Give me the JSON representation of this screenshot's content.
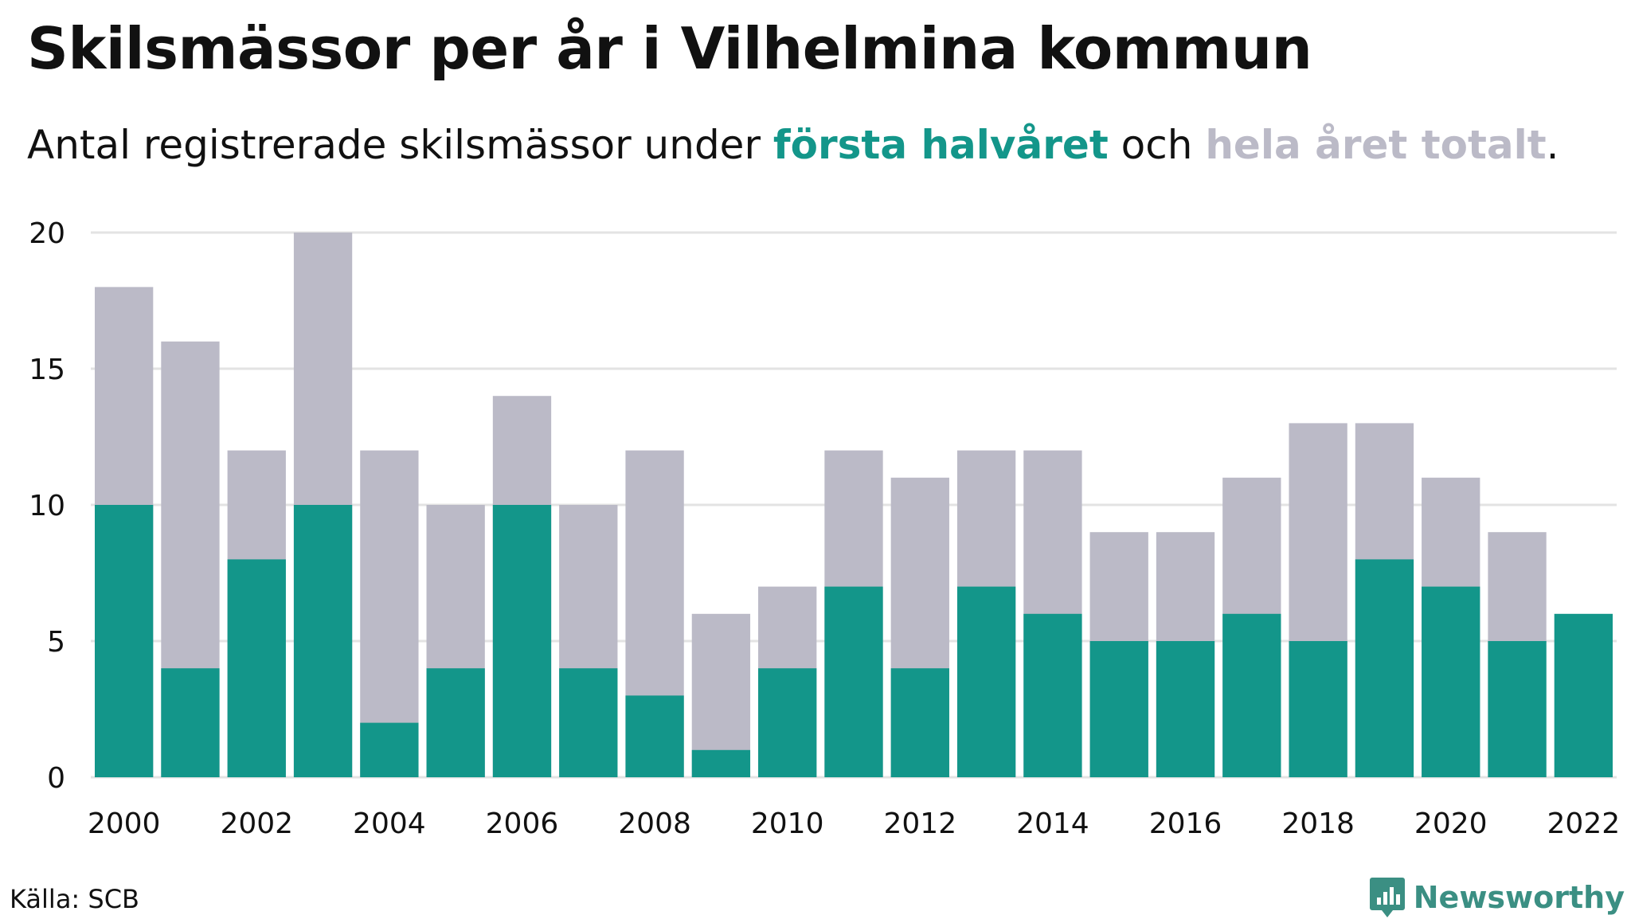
{
  "title": "Skilsmässor per år i Vilhelmina kommun",
  "subtitle": {
    "prefix": "Antal registrerade skilsmässor under ",
    "highlight_first": "första halvåret",
    "middle": " och ",
    "highlight_total": "hela året totalt",
    "suffix": "."
  },
  "source": "Källa: SCB",
  "brand": {
    "name": "Newsworthy",
    "icon": "newsworthy-logo-icon"
  },
  "colors": {
    "first_half": "#13968a",
    "full_year": "#bbbac7",
    "grid": "#e3e3e3",
    "text": "#111111"
  },
  "chart_data": {
    "type": "bar",
    "stacking": "overlay",
    "categories": [
      "2000",
      "2001",
      "2002",
      "2003",
      "2004",
      "2005",
      "2006",
      "2007",
      "2008",
      "2009",
      "2010",
      "2011",
      "2012",
      "2013",
      "2014",
      "2015",
      "2016",
      "2017",
      "2018",
      "2019",
      "2020",
      "2021",
      "2022"
    ],
    "series": [
      {
        "name": "hela året totalt",
        "color": "#bbbac7",
        "values": [
          18,
          16,
          12,
          20,
          12,
          10,
          14,
          10,
          12,
          6,
          7,
          12,
          11,
          12,
          12,
          9,
          9,
          11,
          13,
          13,
          11,
          9,
          null
        ]
      },
      {
        "name": "första halvåret",
        "color": "#13968a",
        "values": [
          10,
          4,
          8,
          10,
          2,
          4,
          10,
          4,
          3,
          1,
          4,
          7,
          4,
          7,
          6,
          5,
          5,
          6,
          5,
          8,
          7,
          5,
          6
        ]
      }
    ],
    "x_tick_labels": [
      "2000",
      "2002",
      "2004",
      "2006",
      "2008",
      "2010",
      "2012",
      "2014",
      "2016",
      "2018",
      "2020",
      "2022"
    ],
    "y_ticks": [
      0,
      5,
      10,
      15,
      20
    ],
    "ylim": [
      0,
      20
    ],
    "grid": true,
    "legend": "in subtitle"
  }
}
